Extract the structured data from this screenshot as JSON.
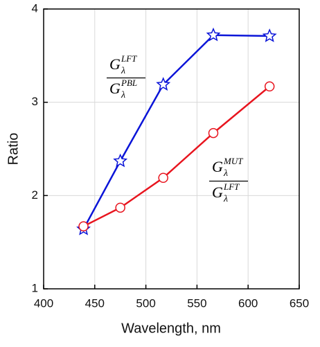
{
  "chart_data": {
    "type": "line",
    "xlabel": "Wavelength, nm",
    "ylabel": "Ratio",
    "xlim": [
      400,
      650
    ],
    "xticks": [
      400,
      450,
      500,
      550,
      600,
      650
    ],
    "ylim": [
      1,
      4
    ],
    "yticks": [
      1,
      2,
      3,
      4
    ],
    "grid": true,
    "series": [
      {
        "color": "#0a14d8",
        "marker": "star",
        "x": [
          439,
          475,
          517,
          566,
          621
        ],
        "values": [
          1.64,
          2.37,
          3.19,
          3.72,
          3.71
        ]
      },
      {
        "color": "#e8141e",
        "marker": "circle",
        "x": [
          439,
          475,
          517,
          566,
          621
        ],
        "values": [
          1.67,
          1.87,
          2.19,
          2.67,
          3.17
        ]
      }
    ],
    "annotations": [
      {
        "numerator": {
          "symbol": "G",
          "sub": "λ",
          "sup": "LFT"
        },
        "denominator": {
          "symbol": "G",
          "sub": "λ",
          "sup": "PBL"
        }
      },
      {
        "numerator": {
          "symbol": "G",
          "sub": "λ",
          "sup": "MUT"
        },
        "denominator": {
          "symbol": "G",
          "sub": "λ",
          "sup": "LFT"
        }
      }
    ]
  }
}
